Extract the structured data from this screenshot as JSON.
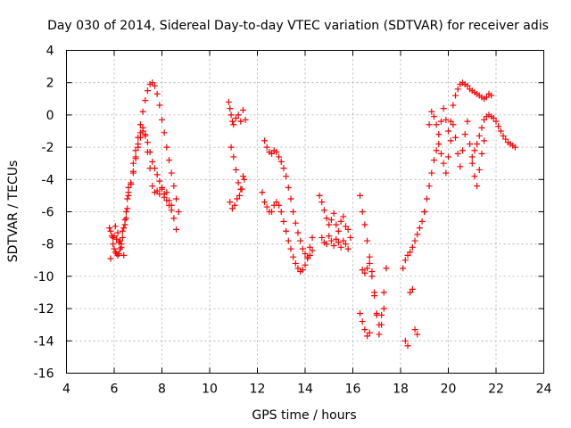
{
  "chart_data": {
    "type": "scatter",
    "title": "Day 030 of 2014, Sidereal Day-to-day VTEC variation (SDTVAR) for receiver adis",
    "xlabel": "GPS time / hours",
    "ylabel": "SDTVAR / TECUs",
    "xlim": [
      4,
      24
    ],
    "ylim": [
      -16,
      4
    ],
    "xticks": [
      4,
      6,
      8,
      10,
      12,
      14,
      16,
      18,
      20,
      22,
      24
    ],
    "yticks": [
      -16,
      -14,
      -12,
      -10,
      -8,
      -6,
      -4,
      -2,
      0,
      2,
      4
    ],
    "grid": true,
    "marker": "+",
    "color": "#ff0000",
    "series": [
      {
        "name": "seg-6h",
        "x": [
          5.8,
          5.85,
          5.9,
          5.95,
          6.0,
          6.05,
          6.1,
          6.15,
          6.2,
          6.25,
          6.3,
          6.35,
          6.4,
          6.45,
          6.5,
          6.55,
          6.6,
          6.0,
          6.1,
          6.2,
          6.3,
          6.4,
          5.85,
          5.95,
          6.05,
          6.15,
          6.25,
          6.35,
          6.45,
          6.5,
          6.55,
          6.6
        ],
        "y": [
          -7.0,
          -7.2,
          -7.5,
          -8.0,
          -8.3,
          -8.5,
          -8.6,
          -8.7,
          -8.6,
          -8.3,
          -8.0,
          -7.6,
          -7.0,
          -6.5,
          -6.0,
          -5.2,
          -4.5,
          -7.5,
          -7.7,
          -7.9,
          -8.2,
          -8.7,
          -8.9,
          -7.6,
          -6.9,
          -7.3,
          -7.8,
          -7.2,
          -6.8,
          -6.4,
          -5.8,
          -5.0
        ]
      },
      {
        "name": "seg-7to9h-upper",
        "x": [
          6.8,
          6.9,
          7.0,
          7.1,
          7.2,
          7.3,
          7.4,
          7.5,
          7.6,
          7.7,
          7.8,
          7.9,
          8.0,
          8.1,
          8.2,
          8.3,
          8.4,
          8.5,
          8.6,
          8.7
        ],
        "y": [
          -3.0,
          -2.2,
          -1.4,
          -0.6,
          0.2,
          0.9,
          1.5,
          1.9,
          2.0,
          1.8,
          1.3,
          0.6,
          -0.3,
          -1.1,
          -2.0,
          -2.8,
          -3.6,
          -4.4,
          -5.2,
          -6.0
        ]
      },
      {
        "name": "seg-7to9h-middle",
        "x": [
          6.7,
          6.8,
          6.9,
          7.0,
          7.1,
          7.2,
          7.3,
          7.4,
          7.5,
          7.6,
          7.7,
          7.8,
          7.9,
          8.0,
          8.1,
          8.2,
          8.3,
          8.4,
          8.5,
          8.6
        ],
        "y": [
          -4.2,
          -3.5,
          -2.7,
          -2.0,
          -1.4,
          -1.0,
          -1.2,
          -1.7,
          -2.3,
          -2.9,
          -3.3,
          -3.7,
          -4.1,
          -4.5,
          -4.9,
          -5.3,
          -5.6,
          -5.9,
          -6.4,
          -7.1
        ]
      },
      {
        "name": "seg-7to9h-lower",
        "x": [
          6.6,
          6.7,
          6.8,
          6.9,
          7.0,
          7.1,
          7.2,
          7.3,
          7.4,
          7.5,
          7.6,
          7.7,
          7.8,
          7.9,
          8.0,
          8.1,
          8.2,
          8.3,
          8.4
        ],
        "y": [
          -4.8,
          -4.3,
          -3.6,
          -2.6,
          -1.8,
          -1.1,
          -0.8,
          -1.3,
          -2.3,
          -3.3,
          -4.4,
          -4.8,
          -4.7,
          -4.9,
          -4.6,
          -5.1,
          -4.8,
          -5.3,
          -5.6
        ]
      },
      {
        "name": "seg-11h",
        "x": [
          10.8,
          10.85,
          10.9,
          10.95,
          11.0,
          11.1,
          11.2,
          11.3,
          11.4,
          11.5,
          10.9,
          11.0,
          11.1,
          11.2,
          11.3,
          11.4,
          10.85,
          10.95,
          11.05,
          11.15,
          11.25,
          11.35,
          11.45
        ],
        "y": [
          0.8,
          0.4,
          0.0,
          -0.4,
          -0.6,
          -0.2,
          0.0,
          -0.4,
          0.3,
          -0.3,
          -2.0,
          -2.6,
          -3.4,
          -4.2,
          -4.6,
          -3.8,
          -5.4,
          -5.8,
          -5.6,
          -5.2,
          -5.0,
          -4.6,
          -4.0
        ]
      },
      {
        "name": "seg-12to14h-upper",
        "x": [
          12.3,
          12.4,
          12.5,
          12.6,
          12.7,
          12.8,
          12.9,
          13.0,
          13.1,
          13.2,
          13.3,
          13.4,
          13.5,
          13.6,
          13.7,
          13.8,
          13.9,
          14.0,
          14.1,
          14.2,
          14.3
        ],
        "y": [
          -1.6,
          -2.0,
          -2.3,
          -2.4,
          -2.2,
          -2.3,
          -2.6,
          -2.9,
          -3.3,
          -3.8,
          -4.5,
          -5.2,
          -6.0,
          -6.7,
          -7.3,
          -7.8,
          -8.3,
          -8.6,
          -8.9,
          -8.7,
          -8.4
        ]
      },
      {
        "name": "seg-12to14h-lower",
        "x": [
          12.2,
          12.3,
          12.4,
          12.5,
          12.6,
          12.7,
          12.8,
          12.9,
          13.0,
          13.1,
          13.2,
          13.3,
          13.4,
          13.5,
          13.6,
          13.7,
          13.8,
          13.9,
          14.0,
          14.1,
          14.2,
          14.3
        ],
        "y": [
          -4.8,
          -5.4,
          -5.7,
          -6.0,
          -6.0,
          -5.6,
          -5.4,
          -5.6,
          -6.0,
          -6.6,
          -7.2,
          -7.8,
          -8.3,
          -8.8,
          -9.2,
          -9.5,
          -9.7,
          -9.6,
          -9.3,
          -8.8,
          -8.2,
          -7.6
        ]
      },
      {
        "name": "seg-15h",
        "x": [
          14.6,
          14.7,
          14.8,
          14.9,
          15.0,
          15.1,
          15.2,
          15.3,
          15.4,
          15.5,
          15.6,
          15.7,
          15.8,
          15.9,
          14.7,
          14.8,
          14.9,
          15.0,
          15.1,
          15.2,
          15.3,
          15.4,
          15.5,
          15.6,
          15.7,
          15.8
        ],
        "y": [
          -5.0,
          -5.4,
          -5.9,
          -6.4,
          -6.8,
          -6.5,
          -6.1,
          -6.8,
          -7.2,
          -6.6,
          -6.3,
          -6.9,
          -7.1,
          -7.6,
          -7.6,
          -7.9,
          -8.0,
          -7.5,
          -7.8,
          -8.1,
          -7.7,
          -7.9,
          -8.2,
          -7.8,
          -8.0,
          -8.3
        ]
      },
      {
        "name": "seg-16to17h",
        "x": [
          16.3,
          16.4,
          16.5,
          16.6,
          16.7,
          16.8,
          16.9,
          17.0,
          17.1,
          17.2,
          17.3,
          17.4,
          16.4,
          16.5,
          16.6,
          16.7,
          16.8,
          16.9,
          17.0,
          17.1,
          17.2,
          17.3,
          16.3,
          16.4,
          16.5,
          16.6,
          16.7
        ],
        "y": [
          -5.0,
          -6.0,
          -6.8,
          -7.8,
          -8.8,
          -10.0,
          -11.2,
          -12.3,
          -13.0,
          -12.4,
          -11.0,
          -9.5,
          -9.6,
          -9.8,
          -9.5,
          -9.2,
          -9.7,
          -11.0,
          -12.4,
          -13.6,
          -13.0,
          -12.0,
          -12.3,
          -12.8,
          -13.3,
          -13.7,
          -13.5
        ]
      },
      {
        "name": "seg-18h",
        "x": [
          18.1,
          18.2,
          18.3,
          18.4,
          18.5,
          18.6,
          18.7,
          18.8,
          18.9,
          19.0,
          18.2,
          18.3,
          18.4,
          18.5,
          18.6,
          18.7
        ],
        "y": [
          -9.5,
          -9.0,
          -8.7,
          -8.5,
          -8.2,
          -7.8,
          -7.4,
          -7.0,
          -6.6,
          -6.0,
          -14.0,
          -14.3,
          -11.0,
          -10.8,
          -13.3,
          -13.6
        ]
      },
      {
        "name": "seg-19to21h",
        "x": [
          19.0,
          19.1,
          19.2,
          19.3,
          19.4,
          19.5,
          19.6,
          19.7,
          19.8,
          19.9,
          20.0,
          20.1,
          20.2,
          20.3,
          20.4,
          20.5,
          20.6,
          20.7,
          20.8,
          20.9,
          21.0,
          21.1,
          21.2,
          21.3,
          21.4,
          21.5
        ],
        "y": [
          -6.0,
          -5.2,
          -4.4,
          -3.6,
          -2.8,
          -2.2,
          -1.8,
          -2.4,
          -3.0,
          -3.6,
          -2.6,
          -1.6,
          -0.6,
          -1.4,
          -2.4,
          -3.2,
          -2.2,
          -1.2,
          -0.4,
          -1.8,
          -3.0,
          -3.8,
          -4.4,
          -3.4,
          -2.4,
          -1.6
        ]
      },
      {
        "name": "seg-19to21h-upper",
        "x": [
          19.2,
          19.3,
          19.4,
          19.5,
          19.6,
          19.7,
          19.8,
          19.9,
          20.0,
          20.1,
          20.2,
          20.3,
          20.4,
          20.5,
          20.6,
          20.7,
          20.8,
          20.9,
          21.0,
          21.1,
          21.2,
          21.3,
          21.4,
          21.5,
          21.6,
          21.7,
          21.8
        ],
        "y": [
          -0.6,
          0.2,
          -0.1,
          -0.6,
          -1.2,
          -0.4,
          0.4,
          -0.3,
          -1.0,
          -0.4,
          0.6,
          1.2,
          1.6,
          1.9,
          2.0,
          1.9,
          1.8,
          1.6,
          1.5,
          1.4,
          1.3,
          1.2,
          1.1,
          1.0,
          1.1,
          1.3,
          1.2
        ]
      },
      {
        "name": "seg-21to23h",
        "x": [
          21.0,
          21.1,
          21.2,
          21.3,
          21.4,
          21.5,
          21.6,
          21.7,
          21.8,
          21.9,
          22.0,
          22.1,
          22.2,
          22.3,
          22.4,
          22.5,
          22.6,
          22.7,
          22.8
        ],
        "y": [
          -2.6,
          -2.2,
          -1.8,
          -1.3,
          -0.8,
          -0.3,
          -0.1,
          0.0,
          -0.1,
          -0.2,
          -0.4,
          -0.7,
          -1.0,
          -1.3,
          -1.5,
          -1.7,
          -1.8,
          -1.9,
          -2.0
        ]
      }
    ]
  }
}
